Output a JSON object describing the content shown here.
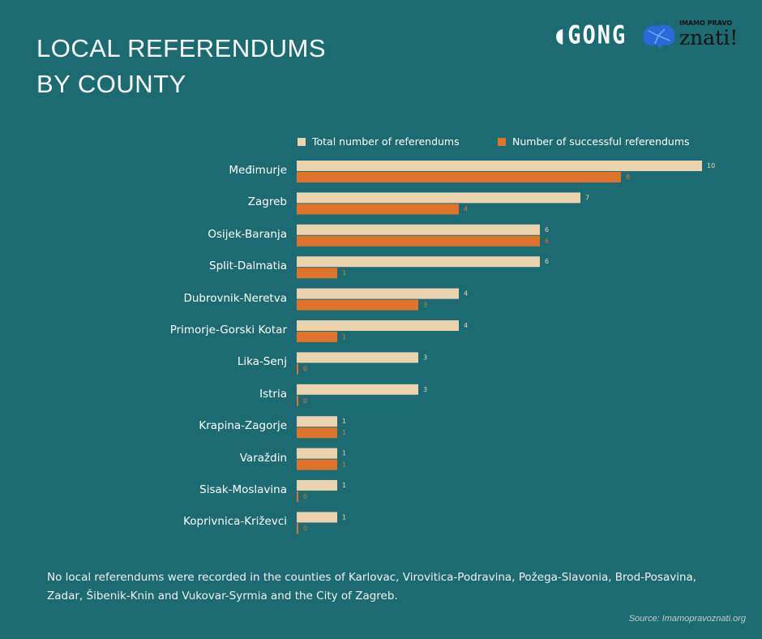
{
  "title_lines": [
    "LOCAL REFERENDUMS",
    "BY COUNTY"
  ],
  "logos": {
    "gong": "GONG",
    "znati_small": "IMAMO PRAVO",
    "znati_big": "znati!"
  },
  "chart_data": {
    "type": "bar",
    "orientation": "horizontal",
    "categories": [
      "Međimurje",
      "Zagreb",
      "Osijek-Baranja",
      "Split-Dalmatia",
      "Dubrovnik-Neretva",
      "Primorje-Gorski Kotar",
      "Lika-Senj",
      "Istria",
      "Krapina-Zagorje",
      "Varaždin",
      "Sisak-Moslavina",
      "Koprivnica-Križevci"
    ],
    "series": [
      {
        "name": "Total number of referendums",
        "color": "#ebd3b0",
        "values": [
          10,
          7,
          6,
          6,
          4,
          4,
          3,
          3,
          1,
          1,
          1,
          1
        ]
      },
      {
        "name": "Number of successful referendums",
        "color": "#e0732b",
        "values": [
          8,
          4,
          6,
          1,
          3,
          1,
          0,
          0,
          1,
          1,
          0,
          0
        ]
      }
    ],
    "xlim": [
      0,
      10
    ],
    "legend": "top",
    "grid": false,
    "data_labels": true
  },
  "note": "No local referendums were recorded in the counties of Karlovac, Virovitica-Podravina, Požega-Slavonia, Brod-Posavina, Zadar, Šibenik-Knin and Vukovar-Syrmia and the City of Zagreb.",
  "source": "Source: Imamopravoznati.org"
}
